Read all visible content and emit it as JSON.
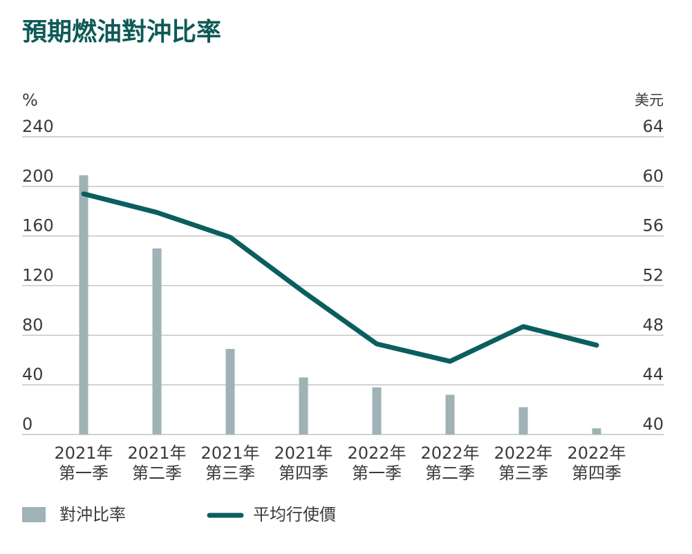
{
  "chart_data": {
    "type": "bar_line",
    "title": "預期燃油對沖比率",
    "y_label": "%",
    "y2_label": "美元",
    "categories": [
      [
        "2021年",
        "第一季"
      ],
      [
        "2021年",
        "第二季"
      ],
      [
        "2021年",
        "第三季"
      ],
      [
        "2021年",
        "第四季"
      ],
      [
        "2022年",
        "第一季"
      ],
      [
        "2022年",
        "第二季"
      ],
      [
        "2022年",
        "第三季"
      ],
      [
        "2022年",
        "第四季"
      ]
    ],
    "series": [
      {
        "name": "對沖比率",
        "type": "bar",
        "color": "#9fb2b6",
        "values": [
          209,
          150,
          69,
          46,
          38,
          32,
          22,
          5
        ]
      },
      {
        "name": "平均行使價",
        "type": "line",
        "axis": "y2",
        "color": "#0b5e5e",
        "values": [
          59.4,
          57.9,
          55.9,
          51.5,
          47.3,
          45.9,
          48.7,
          47.2
        ]
      }
    ],
    "ylim": [
      0,
      240
    ],
    "yticks": [
      0,
      40,
      80,
      120,
      160,
      200,
      240
    ],
    "y2lim": [
      40,
      64
    ],
    "y2ticks": [
      40,
      44,
      48,
      52,
      56,
      60,
      64
    ],
    "grid": true
  }
}
